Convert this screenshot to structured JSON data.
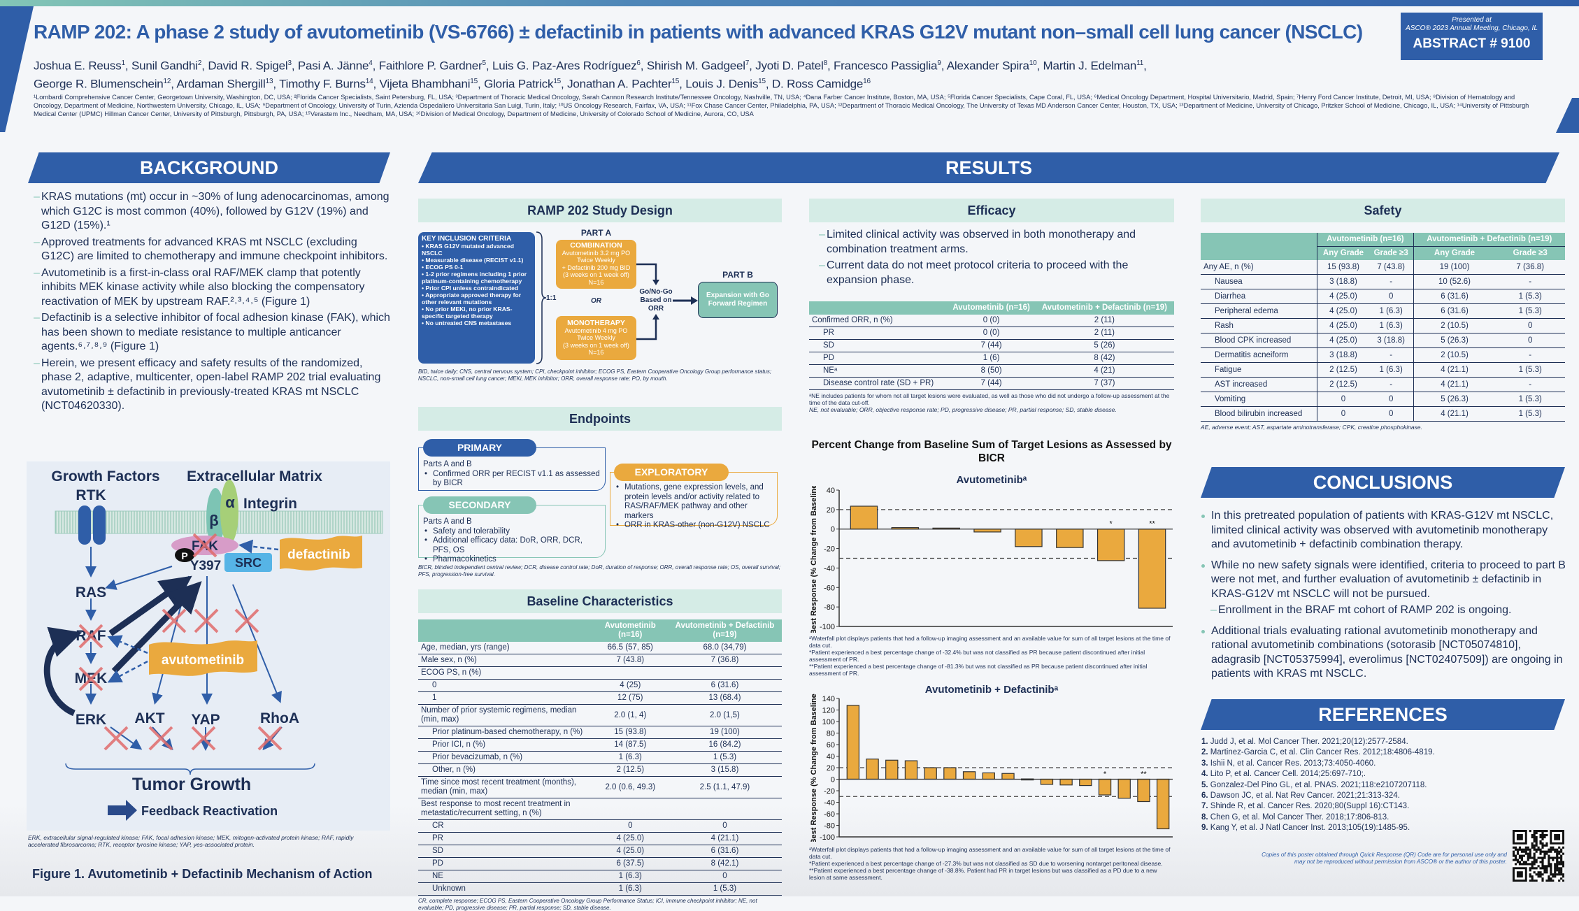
{
  "header": {
    "title": "RAMP 202: A phase 2 study of avutometinib (VS-6766) ± defactinib in patients with advanced KRAS G12V mutant non–small cell lung cancer (NSCLC)",
    "authors_line1": [
      {
        "name": "Joshua E. Reuss",
        "sup": "1"
      },
      {
        "name": "Sunil Gandhi",
        "sup": "2"
      },
      {
        "name": "David R. Spigel",
        "sup": "3"
      },
      {
        "name": "Pasi A. Jänne",
        "sup": "4"
      },
      {
        "name": "Faithlore P. Gardner",
        "sup": "5"
      },
      {
        "name": "Luis G. Paz-Ares Rodríguez",
        "sup": "6"
      },
      {
        "name": "Shirish M. Gadgeel",
        "sup": "7"
      },
      {
        "name": "Jyoti D. Patel",
        "sup": "8"
      },
      {
        "name": "Francesco Passiglia",
        "sup": "9"
      },
      {
        "name": "Alexander Spira",
        "sup": "10"
      },
      {
        "name": "Martin J. Edelman",
        "sup": "11"
      }
    ],
    "authors_line2": [
      {
        "name": "George R. Blumenschein",
        "sup": "12"
      },
      {
        "name": "Ardaman Shergill",
        "sup": "13"
      },
      {
        "name": "Timothy F. Burns",
        "sup": "14"
      },
      {
        "name": "Vijeta Bhambhani",
        "sup": "15"
      },
      {
        "name": "Gloria Patrick",
        "sup": "15"
      },
      {
        "name": "Jonathan A. Pachter",
        "sup": "15"
      },
      {
        "name": "Louis J. Denis",
        "sup": "15"
      },
      {
        "name": "D. Ross Camidge",
        "sup": "16"
      }
    ],
    "affiliations": "¹Lombardi Comprehensive Cancer Center, Georgetown University, Washington, DC, USA; ²Florida Cancer Specialists, Saint Petersburg, FL, USA; ³Department of Thoracic Medical Oncology, Sarah Cannon Research Institute/Tennessee Oncology, Nashville, TN, USA; ⁴Dana Farber Cancer Institute, Boston, MA, USA; ⁵Florida Cancer Specialists, Cape Coral, FL, USA; ⁶Medical Oncology Department, Hospital Universitario, Madrid, Spain; ⁷Henry Ford Cancer Institute, Detroit, MI, USA; ⁸Division of Hematology and Oncology, Department of Medicine, Northwestern University, Chicago, IL, USA; ⁹Department of Oncology, University of Turin, Azienda Ospedaliero Universitaria San Luigi, Turin, Italy; ¹⁰US Oncology Research, Fairfax, VA, USA; ¹¹Fox Chase Cancer Center, Philadelphia, PA, USA; ¹²Department of Thoracic Medical Oncology, The University of Texas MD Anderson Cancer Center, Houston, TX, USA; ¹³Department of Medicine, University of Chicago, Pritzker School of Medicine, Chicago, IL, USA; ¹⁴University of Pittsburgh Medical Center (UPMC) Hillman Cancer Center, University of Pittsburgh, Pittsburgh, PA, USA; ¹⁵Verastem Inc., Needham, MA, USA; ¹⁶Division of Medical Oncology, Department of Medicine, University of Colorado School of Medicine, Aurora, CO, USA",
    "presented_at": "Presented at",
    "meeting": "ASCO® 2023 Annual Meeting, Chicago, IL",
    "abstract_number": "ABSTRACT # 9100"
  },
  "colors": {
    "blue": "#2f5ea8",
    "navy": "#1d2f55",
    "teal": "#86c5b5",
    "orange": "#eaa93e",
    "light_teal": "#d5ece6"
  },
  "background": {
    "heading": "BACKGROUND",
    "bullets": [
      "KRAS mutations (mt) occur in ~30% of lung adenocarcinomas, among which G12C is most common (40%), followed by G12V (19%) and G12D (15%).¹",
      "Approved treatments for advanced KRAS mt NSCLC (excluding G12C) are limited to chemotherapy and immune checkpoint inhibitors.",
      "Avutometinib is a first-in-class oral RAF/MEK clamp that potently inhibits MEK kinase activity while also blocking the compensatory reactivation of MEK by upstream RAF.²˒³˒⁴˒⁵ (Figure 1)",
      "Defactinib is a selective inhibitor of focal adhesion kinase (FAK), which has been shown to mediate resistance to multiple anticancer agents.⁶˒⁷˒⁸˒⁹ (Figure 1)",
      "Herein, we present efficacy and safety results of the randomized, phase 2, adaptive, multicenter, open-label RAMP 202 trial evaluating avutometinib ± defactinib in previously-treated KRAS mt NSCLC (NCT04620330)."
    ],
    "figure": {
      "growth_factors": "Growth Factors",
      "extracellular_matrix": "Extracellular Matrix",
      "rtk": "RTK",
      "integrin": "Integrin",
      "beta": "β",
      "alpha": "α",
      "fak": "FAK",
      "p": "P",
      "y397": "Y397",
      "src": "SRC",
      "defactinib": "defactinib",
      "avutometinib": "avutometinib",
      "ras": "RAS",
      "raf": "RAF",
      "mek": "MEK",
      "erk": "ERK",
      "akt": "AKT",
      "yap": "YAP",
      "rhoa": "RhoA",
      "tumor_growth": "Tumor Growth",
      "feedback": "Feedback Reactivation",
      "footnote": "ERK, extracellular signal-regulated kinase; FAK, focal adhesion kinase; MEK, mitogen-activated protein kinase; RAF, rapidly accelerated fibrosarcoma; RTK, receptor tyrosine kinase; YAP, yes-associated protein.",
      "caption": "Figure 1. Avutometinib + Defactinib Mechanism of Action"
    }
  },
  "results": {
    "heading": "RESULTS"
  },
  "study_design": {
    "heading": "RAMP 202 Study Design",
    "criteria_title": "KEY INCLUSION CRITERIA",
    "criteria": [
      "KRAS G12V mutated advanced NSCLC",
      "Measurable disease (RECIST v1.1)",
      "ECOG PS 0-1",
      "1-2 prior regimens including 1 prior platinum-containing chemotherapy",
      "Prior CPI unless contraindicated",
      "Appropriate approved therapy for other relevant mutations",
      "No prior MEKi, no prior KRAS-specific targeted therapy",
      "No untreated CNS metastases"
    ],
    "ratio": "1:1",
    "part_a": "PART A",
    "or": "OR",
    "part_b": "PART B",
    "combination": {
      "title": "COMBINATION",
      "l1": "Avutometinib 3.2 mg PO",
      "l2": "Twice Weekly",
      "l3": "+ Defactinib 200 mg BID",
      "l4": "(3 weeks on 1 week off)",
      "n": "N=16"
    },
    "monotherapy": {
      "title": "MONOTHERAPY",
      "l1": "Avutometinib 4 mg PO",
      "l2": "Twice Weekly",
      "l3": "(3 weeks on 1 week off)",
      "n": "N=16"
    },
    "go_no_go": "Go/No-Go Based on ORR",
    "expansion": "Expansion with Go Forward Regimen",
    "footnote": "BID, twice daily; CNS, central nervous system; CPI, checkpoint inhibitor; ECOG PS, Eastern Cooperative Oncology Group performance status; NSCLC, non-small cell lung cancer; MEKi, MEK inhibitor; ORR, overall response rate; PO, by mouth."
  },
  "endpoints": {
    "heading": "Endpoints",
    "primary": {
      "label": "PRIMARY",
      "intro": "Parts A and B",
      "items": [
        "Confirmed ORR per RECIST v1.1 as assessed by BICR"
      ]
    },
    "secondary": {
      "label": "SECONDARY",
      "intro": "Parts A and B",
      "items": [
        "Safety and tolerability",
        "Additional efficacy data: DoR, ORR, DCR, PFS, OS",
        "Pharmacokinetics"
      ]
    },
    "exploratory": {
      "label": "EXPLORATORY",
      "items": [
        "Mutations, gene expression levels, and protein levels and/or activity related to RAS/RAF/MEK pathway and other markers",
        "ORR in KRAS-other (non-G12V) NSCLC"
      ]
    },
    "footnote": "BICR, blinded independent central review; DCR, disease control rate; DoR, duration of response; ORR, overall response rate; OS, overall survival; PFS, progression-free survival."
  },
  "baseline": {
    "heading": "Baseline Characteristics",
    "columns": [
      "",
      "Avutometinib (n=16)",
      "Avutometinib + Defactinib (n=19)"
    ],
    "rows": [
      {
        "label": "Age, median, yrs (range)",
        "values": [
          "66.5 (57, 85)",
          "68.0 (34,79)"
        ]
      },
      {
        "label": "Male sex, n (%)",
        "values": [
          "7 (43.8)",
          "7 (36.8)"
        ]
      },
      {
        "label": "ECOG PS, n (%)",
        "values": [
          "",
          ""
        ]
      },
      {
        "label": "0",
        "indent": true,
        "values": [
          "4 (25)",
          "6 (31.6)"
        ]
      },
      {
        "label": "1",
        "indent": true,
        "values": [
          "12 (75)",
          "13 (68.4)"
        ]
      },
      {
        "label": "Number of prior systemic regimens, median (min, max)",
        "values": [
          "2.0 (1, 4)",
          "2.0 (1,5)"
        ]
      },
      {
        "label": "Prior platinum-based chemotherapy, n (%)",
        "indent": true,
        "values": [
          "15 (93.8)",
          "19 (100)"
        ]
      },
      {
        "label": "Prior ICI, n (%)",
        "indent": true,
        "values": [
          "14 (87.5)",
          "16 (84.2)"
        ]
      },
      {
        "label": "Prior bevacizumab, n (%)",
        "indent": true,
        "values": [
          "1 (6.3)",
          "1 (5.3)"
        ]
      },
      {
        "label": "Other, n (%)",
        "indent": true,
        "values": [
          "2 (12.5)",
          "3 (15.8)"
        ]
      },
      {
        "label": "Time since most recent treatment (months), median (min, max)",
        "values": [
          "2.0 (0.6, 49.3)",
          "2.5 (1.1, 47.9)"
        ]
      },
      {
        "label": "Best response to most recent treatment in metastatic/recurrent setting, n (%)",
        "values": [
          "",
          ""
        ]
      },
      {
        "label": "CR",
        "indent": true,
        "values": [
          "0",
          "0"
        ]
      },
      {
        "label": "PR",
        "indent": true,
        "values": [
          "4 (25.0)",
          "4 (21.1)"
        ]
      },
      {
        "label": "SD",
        "indent": true,
        "values": [
          "4 (25.0)",
          "6 (31.6)"
        ]
      },
      {
        "label": "PD",
        "indent": true,
        "values": [
          "6 (37.5)",
          "8 (42.1)"
        ]
      },
      {
        "label": "NE",
        "indent": true,
        "values": [
          "1 (6.3)",
          "0"
        ]
      },
      {
        "label": "Unknown",
        "indent": true,
        "values": [
          "1 (6.3)",
          "1 (5.3)"
        ]
      }
    ],
    "footnote": "CR, complete response; ECOG PS, Eastern Cooperative Oncology Group Performance Status; ICI, immune checkpoint inhibitor; NE, not evaluable; PD, progressive disease; PR, partial response; SD, stable disease."
  },
  "efficacy": {
    "heading": "Efficacy",
    "bullets": [
      "Limited clinical activity was observed in both monotherapy and combination treatment arms.",
      "Current data do not meet protocol criteria to proceed with the expansion phase."
    ],
    "columns": [
      "",
      "Avutometinib (n=16)",
      "Avutometinib + Defactinib (n=19)"
    ],
    "rows": [
      {
        "label": "Confirmed ORR, n (%)",
        "values": [
          "0 (0)",
          "2 (11)"
        ]
      },
      {
        "label": "PR",
        "indent": true,
        "values": [
          "0 (0)",
          "2 (11)"
        ]
      },
      {
        "label": "SD",
        "indent": true,
        "values": [
          "7 (44)",
          "5 (26)"
        ]
      },
      {
        "label": "PD",
        "indent": true,
        "values": [
          "1 (6)",
          "8 (42)"
        ]
      },
      {
        "label": "NEᵃ",
        "indent": true,
        "values": [
          "8 (50)",
          "4 (21)"
        ]
      },
      {
        "label": "Disease control rate (SD + PR)",
        "indent": true,
        "values": [
          "7 (44)",
          "7 (37)"
        ]
      }
    ],
    "footnote1": "ᵃNE includes patients for whom not all target lesions were evaluated, as well as those who did not undergo a follow-up assessment at the time of the data cut-off.",
    "footnote2": "NE, not evaluable; ORR, objective response rate; PD, progressive disease; PR, partial response; SD, stable disease.",
    "waterfall_title": "Percent Change from Baseline Sum of Target Lesions as Assessed by BICR"
  },
  "chart_data": [
    {
      "type": "bar",
      "title": "Avutometinibᵃ",
      "ylabel": "Best Response (% Change from Baseline)",
      "ylim": [
        -100,
        40
      ],
      "yticks": [
        40,
        20,
        0,
        -20,
        -40,
        -60,
        -80,
        -100
      ],
      "reference_lines": [
        20,
        -30
      ],
      "values": [
        23.5,
        1.5,
        1,
        -3,
        -18,
        -19,
        -32.4,
        -81.3
      ],
      "annotations": [
        {
          "index": 6,
          "text": "*"
        },
        {
          "index": 7,
          "text": "**"
        }
      ],
      "bar_color": "#eaa93e",
      "footnotes": [
        "ᵃWaterfall plot displays patients that had a follow-up imaging assessment and an available value for sum of all target lesions at the time of data cut.",
        "*Patient experienced a best percentage change of -32.4% but was not classified as PR because patient discontinued after initial assessment of PR.",
        "**Patient experienced a best percentage change of -81.3% but was not classified as PR because patient discontinued after initial assessment of PR."
      ]
    },
    {
      "type": "bar",
      "title": "Avutometinib + Defactinibᵃ",
      "ylabel": "Best Response (% Change from Baseline)",
      "ylim": [
        -100,
        140
      ],
      "yticks": [
        140,
        120,
        100,
        80,
        60,
        40,
        20,
        0,
        -20,
        -40,
        -60,
        -80,
        -100
      ],
      "reference_lines": [
        20,
        -30
      ],
      "values": [
        128,
        35,
        33,
        32,
        20,
        20,
        13,
        11,
        10,
        0.5,
        -9,
        -10,
        -11,
        -27.3,
        -33,
        -38.8,
        -86
      ],
      "annotations": [
        {
          "index": 13,
          "text": "*"
        },
        {
          "index": 15,
          "text": "**"
        }
      ],
      "bar_color": "#eaa93e",
      "footnotes": [
        "ᵃWaterfall plot displays patients that had a follow-up imaging assessment and an available value for sum of all target lesions at the time of data cut.",
        "*Patient experienced a best percentage change of -27.3% but was not classified as SD due to worsening nontarget peritoneal disease.",
        "**Patient experienced a best percentage change of -38.8%. Patient had PR in target lesions but was classified as a PD due to a new lesion at same assessment."
      ]
    }
  ],
  "safety": {
    "heading": "Safety",
    "groups": [
      "Avutometinib (n=16)",
      "Avutometinib + Defactinib (n=19)"
    ],
    "subcolumns": [
      "Any Grade",
      "Grade ≥3",
      "Any Grade",
      "Grade ≥3"
    ],
    "rows": [
      {
        "label": "Any AE, n (%)",
        "values": [
          "15 (93.8)",
          "7 (43.8)",
          "19 (100)",
          "7 (36.8)"
        ]
      },
      {
        "label": "Nausea",
        "indent": true,
        "values": [
          "3 (18.8)",
          "-",
          "10 (52.6)",
          "-"
        ]
      },
      {
        "label": "Diarrhea",
        "indent": true,
        "values": [
          "4 (25.0)",
          "0",
          "6 (31.6)",
          "1 (5.3)"
        ]
      },
      {
        "label": "Peripheral edema",
        "indent": true,
        "values": [
          "4 (25.0)",
          "1 (6.3)",
          "6 (31.6)",
          "1 (5.3)"
        ]
      },
      {
        "label": "Rash",
        "indent": true,
        "values": [
          "4 (25.0)",
          "1 (6.3)",
          "2 (10.5)",
          "0"
        ]
      },
      {
        "label": "Blood CPK increased",
        "indent": true,
        "values": [
          "4 (25.0)",
          "3 (18.8)",
          "5 (26.3)",
          "0"
        ]
      },
      {
        "label": "Dermatitis acneiform",
        "indent": true,
        "values": [
          "3 (18.8)",
          "-",
          "2 (10.5)",
          "-"
        ]
      },
      {
        "label": "Fatigue",
        "indent": true,
        "values": [
          "2 (12.5)",
          "1 (6.3)",
          "4 (21.1)",
          "1 (5.3)"
        ]
      },
      {
        "label": "AST increased",
        "indent": true,
        "values": [
          "2 (12.5)",
          "-",
          "4 (21.1)",
          "-"
        ]
      },
      {
        "label": "Vomiting",
        "indent": true,
        "values": [
          "0",
          "0",
          "5 (26.3)",
          "1 (5.3)"
        ]
      },
      {
        "label": "Blood bilirubin increased",
        "indent": true,
        "values": [
          "0",
          "0",
          "4 (21.1)",
          "1 (5.3)"
        ]
      }
    ],
    "footnote": "AE, adverse event; AST, aspartate aminotransferase; CPK, creatine phosphokinase."
  },
  "conclusions": {
    "heading": "CONCLUSIONS",
    "bullets": [
      {
        "text": "In this pretreated population of patients with KRAS-G12V mt NSCLC, limited clinical activity was observed with avutometinib monotherapy and avutometinib + defactinib combination therapy."
      },
      {
        "text": "While no new safety signals were identified, criteria to proceed to part B were not met, and further evaluation of avutometinib ± defactinib in KRAS-G12V mt NSCLC will not be pursued."
      },
      {
        "text": "Enrollment in the BRAF mt cohort of RAMP 202 is ongoing.",
        "sub": true
      },
      {
        "text": "Additional trials evaluating rational avutometinib monotherapy and rational avutometinib combinations (sotorasib [NCT05074810], adagrasib [NCT05375994], everolimus [NCT02407509]) are ongoing in patients with KRAS mt NSCLC."
      }
    ]
  },
  "references": {
    "heading": "REFERENCES",
    "items": [
      {
        "num": "1.",
        "text": "Judd J, et al. Mol Cancer Ther. 2021;20(12):2577-2584."
      },
      {
        "num": "2.",
        "text": "Martinez-Garcia C, et al. Clin Cancer Res. 2012;18:4806-4819."
      },
      {
        "num": "3.",
        "text": "Ishii N, et al. Cancer Res. 2013;73:4050-4060."
      },
      {
        "num": "4.",
        "text": "Lito P, et al. Cancer Cell. 2014;25:697-710;."
      },
      {
        "num": "5.",
        "text": "Gonzalez-Del Pino GL, et al. PNAS. 2021;118:e2107207118."
      },
      {
        "num": "6.",
        "text": "Dawson JC, et al. Nat Rev Cancer. 2021;21:313-324."
      },
      {
        "num": "7.",
        "text": "Shinde R, et al. Cancer Res. 2020;80(Suppl 16):CT143."
      },
      {
        "num": "8.",
        "text": "Chen G, et al. Mol Cancer Ther. 2018;17:806-813."
      },
      {
        "num": "9.",
        "text": "Kang Y, et al. J Natl Cancer Inst. 2013;105(19):1485-95."
      }
    ],
    "qr_note": "Copies of this poster obtained through Quick Response (QR) Code are for personal use only and may not be reproduced without permission from ASCO® or the author of this poster.",
    "qr_icon": "qr-code-icon"
  }
}
